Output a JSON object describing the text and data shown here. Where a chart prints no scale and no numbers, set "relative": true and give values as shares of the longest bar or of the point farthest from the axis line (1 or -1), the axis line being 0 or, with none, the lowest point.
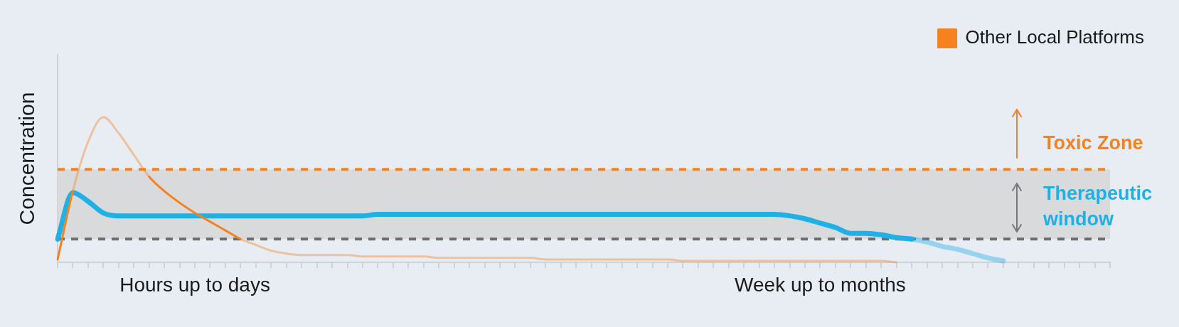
{
  "chart_data": {
    "type": "line",
    "ylabel": "Concentration",
    "relative": true,
    "legend": "top right",
    "marker": "none",
    "tick_labels": "x",
    "categories": [
      null,
      null,
      null,
      null,
      null,
      null,
      null,
      null,
      null,
      "Hours up to days",
      null,
      null,
      null,
      null,
      null,
      null,
      null,
      null,
      null,
      null,
      null,
      null,
      null,
      null,
      null,
      null,
      null,
      null,
      null,
      null,
      null,
      null,
      null,
      null,
      null,
      null,
      null,
      null,
      null,
      null,
      null,
      null,
      null,
      null,
      null,
      null,
      null,
      null,
      null,
      null,
      "Week up to months",
      null,
      null,
      null,
      null,
      null,
      null,
      null,
      null,
      null,
      null,
      null,
      null,
      null,
      null,
      null,
      null,
      null,
      null,
      null
    ],
    "series": [
      {
        "color": "#1fb0e6",
        "values": [
          0.16,
          0.48,
          0.42,
          0.34,
          0.32,
          0.32,
          0.32,
          0.32,
          0.32,
          0.32,
          0.32,
          0.32,
          0.32,
          0.32,
          0.32,
          0.32,
          0.32,
          0.32,
          0.32,
          0.32,
          0.32,
          0.33,
          0.33,
          0.33,
          0.33,
          0.33,
          0.33,
          0.33,
          0.33,
          0.33,
          0.33,
          0.33,
          0.33,
          0.33,
          0.33,
          0.33,
          0.33,
          0.33,
          0.33,
          0.33,
          0.33,
          0.33,
          0.33,
          0.33,
          0.33,
          0.33,
          0.33,
          0.33,
          0.32,
          0.3,
          0.27,
          0.24,
          0.2,
          0.2,
          0.19,
          0.17,
          0.16,
          0.14,
          0.11,
          0.09,
          0.06,
          0.03,
          0.01,
          null,
          null,
          null,
          null,
          null,
          null,
          null
        ]
      },
      {
        "name": "Other Local Platforms",
        "color": "#f5821f",
        "values": [
          0.02,
          0.49,
          0.83,
          1,
          0.89,
          0.74,
          0.59,
          0.49,
          0.41,
          0.34,
          0.28,
          0.22,
          0.16,
          0.12,
          0.08,
          0.06,
          0.05,
          0.05,
          0.05,
          0.05,
          0.04,
          0.04,
          0.04,
          0.04,
          0.04,
          0.03,
          0.03,
          0.03,
          0.03,
          0.03,
          0.03,
          0.03,
          0.02,
          0.02,
          0.02,
          0.02,
          0.02,
          0.02,
          0.02,
          0.02,
          0.02,
          0.01,
          0.01,
          0.01,
          0.01,
          0.01,
          0.01,
          0.01,
          0.01,
          0.01,
          0.01,
          0.01,
          0.01,
          0.01,
          0.01,
          0,
          null,
          null,
          null,
          null,
          null,
          null,
          null,
          null,
          null,
          null,
          null,
          null,
          null,
          null
        ]
      }
    ],
    "ref_lines": [
      {
        "axis": "y",
        "value": 0.64,
        "label": "Toxic Zone",
        "color": "#f5821f",
        "line_style": "dashed"
      },
      {
        "axis": "y",
        "value": 0.16,
        "color": "#6e6e6e",
        "line_style": "dashed"
      }
    ],
    "bands": [
      {
        "axis": "y",
        "from": 0.16,
        "to": 0.64,
        "label": "Therapeutic window",
        "color": "#d9dadc"
      }
    ]
  }
}
